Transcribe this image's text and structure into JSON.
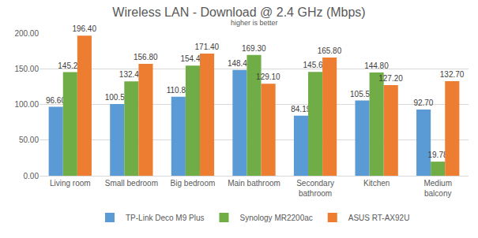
{
  "chart_data": {
    "type": "bar",
    "title": "Wireless LAN - Download @ 2.4 GHz (Mbps)",
    "subtitle": "higher is better",
    "categories": [
      "Living room",
      "Small bedroom",
      "Big bedroom",
      "Main bathroom",
      "Secondary bathroom",
      "Kitchen",
      "Medium balcony"
    ],
    "series": [
      {
        "name": "TP-Link Deco M9 Plus",
        "color": "#5b9bd5",
        "values": [
          96.6,
          100.5,
          110.8,
          148.4,
          84.19,
          105.5,
          92.7
        ],
        "value_labels": [
          "96.60",
          "100.50",
          "110.80",
          "148.40",
          "84.19",
          "105.50",
          "92.70"
        ]
      },
      {
        "name": "Synology MR2200ac",
        "color": "#70ad47",
        "values": [
          145.2,
          132.4,
          154.4,
          169.3,
          145.6,
          144.8,
          19.78
        ],
        "value_labels": [
          "145.20",
          "132.40",
          "154.40",
          "169.30",
          "145.60",
          "144.80",
          "19.78"
        ]
      },
      {
        "name": "ASUS RT-AX92U",
        "color": "#ed7d31",
        "values": [
          196.4,
          156.8,
          171.4,
          129.1,
          165.8,
          127.2,
          132.7
        ],
        "value_labels": [
          "196.40",
          "156.80",
          "171.40",
          "129.10",
          "165.80",
          "127.20",
          "132.70"
        ]
      }
    ],
    "ylim": [
      0,
      200
    ],
    "yticks": [
      {
        "value": 0,
        "label": "0.00"
      },
      {
        "value": 50,
        "label": "50.00"
      },
      {
        "value": 100,
        "label": "100.00"
      },
      {
        "value": 150,
        "label": "150.00"
      },
      {
        "value": 200,
        "label": "200.00"
      }
    ],
    "grid": true,
    "legend": "bottom",
    "data_labels": true
  }
}
